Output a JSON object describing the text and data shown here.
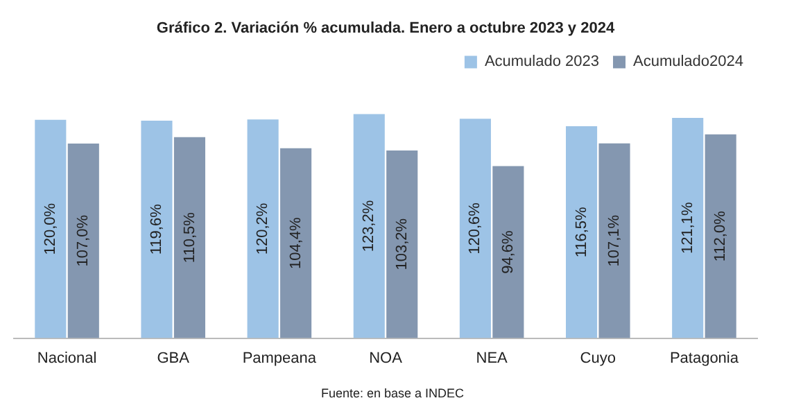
{
  "chart_data": {
    "type": "bar",
    "title": "Gráfico 2. Variación % acumulada. Enero a octubre 2023 y 2024",
    "categories": [
      "Nacional",
      "GBA",
      "Pampeana",
      "NOA",
      "NEA",
      "Cuyo",
      "Patagonia"
    ],
    "series": [
      {
        "name": "Acumulado 2023",
        "color": "#9dc3e6",
        "values": [
          120.0,
          119.6,
          120.2,
          123.2,
          120.6,
          116.5,
          121.1
        ],
        "value_labels": [
          "120,0%",
          "119,6%",
          "120,2%",
          "123,2%",
          "120,6%",
          "116,5%",
          "121,1%"
        ]
      },
      {
        "name": "Acumulado2024",
        "color": "#8497b0",
        "values": [
          107.0,
          110.5,
          104.4,
          103.2,
          94.6,
          107.1,
          112.0
        ],
        "value_labels": [
          "107,0%",
          "110,5%",
          "104,4%",
          "103,2%",
          "94,6%",
          "107,1%",
          "112,0%"
        ]
      }
    ],
    "legend": "top right",
    "grid": false,
    "annotations": [
      "Fuente: en base a INDEC"
    ]
  }
}
